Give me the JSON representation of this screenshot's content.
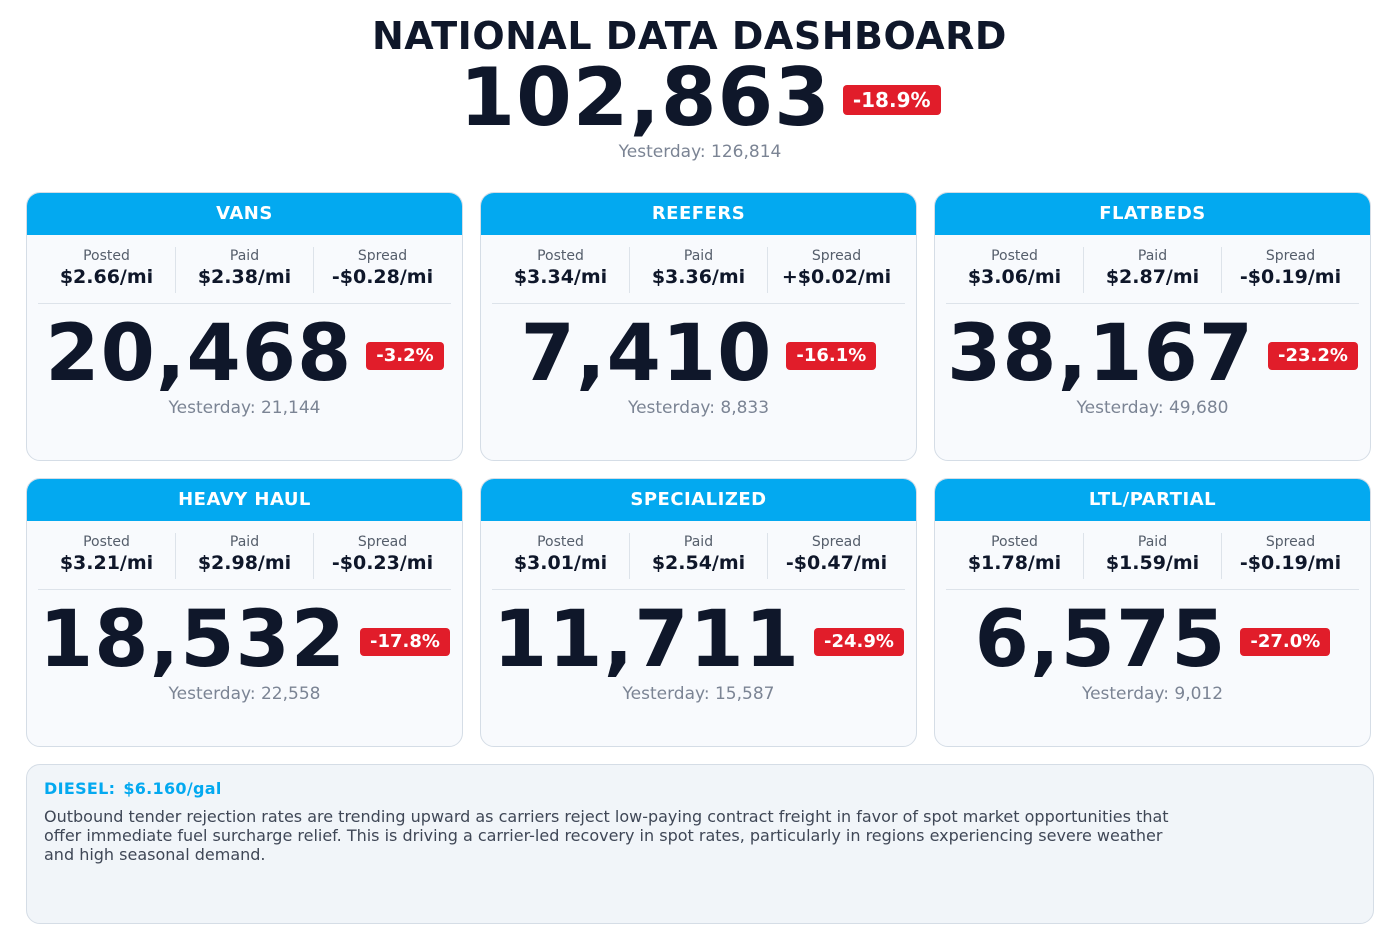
{
  "title": "NATIONAL DATA DASHBOARD",
  "total": {
    "value": "102,863",
    "change": "-18.9%",
    "yesterday": "Yesterday: 126,814"
  },
  "labels": {
    "posted": "Posted",
    "paid": "Paid",
    "spread": "Spread"
  },
  "colors": {
    "accent": "#03a9f0",
    "negative_badge": "#e11d2a",
    "text_dark": "#0f172a",
    "text_muted": "#7b8494"
  },
  "cards": [
    {
      "name": "VANS",
      "posted": "$2.66/mi",
      "paid": "$2.38/mi",
      "spread": "-$0.28/mi",
      "loads": "20,468",
      "change": "-3.2%",
      "yesterday": "Yesterday: 21,144"
    },
    {
      "name": "REEFERS",
      "posted": "$3.34/mi",
      "paid": "$3.36/mi",
      "spread": "+$0.02/mi",
      "loads": "7,410",
      "change": "-16.1%",
      "yesterday": "Yesterday: 8,833"
    },
    {
      "name": "FLATBEDS",
      "posted": "$3.06/mi",
      "paid": "$2.87/mi",
      "spread": "-$0.19/mi",
      "loads": "38,167",
      "change": "-23.2%",
      "yesterday": "Yesterday: 49,680"
    },
    {
      "name": "HEAVY HAUL",
      "posted": "$3.21/mi",
      "paid": "$2.98/mi",
      "spread": "-$0.23/mi",
      "loads": "18,532",
      "change": "-17.8%",
      "yesterday": "Yesterday: 22,558"
    },
    {
      "name": "SPECIALIZED",
      "posted": "$3.01/mi",
      "paid": "$2.54/mi",
      "spread": "-$0.47/mi",
      "loads": "11,711",
      "change": "-24.9%",
      "yesterday": "Yesterday: 15,587"
    },
    {
      "name": "LTL/PARTIAL",
      "posted": "$1.78/mi",
      "paid": "$1.59/mi",
      "spread": "-$0.19/mi",
      "loads": "6,575",
      "change": "-27.0%",
      "yesterday": "Yesterday: 9,012"
    }
  ],
  "notes": {
    "diesel_label": "DIESEL:",
    "diesel_value": "$6.160/gal",
    "commentary": "Outbound tender rejection rates are trending upward as carriers reject low-paying contract freight in favor of spot market opportunities that offer immediate fuel surcharge relief. This is driving a carrier-led recovery in spot rates, particularly in regions experiencing severe weather and high seasonal demand."
  }
}
